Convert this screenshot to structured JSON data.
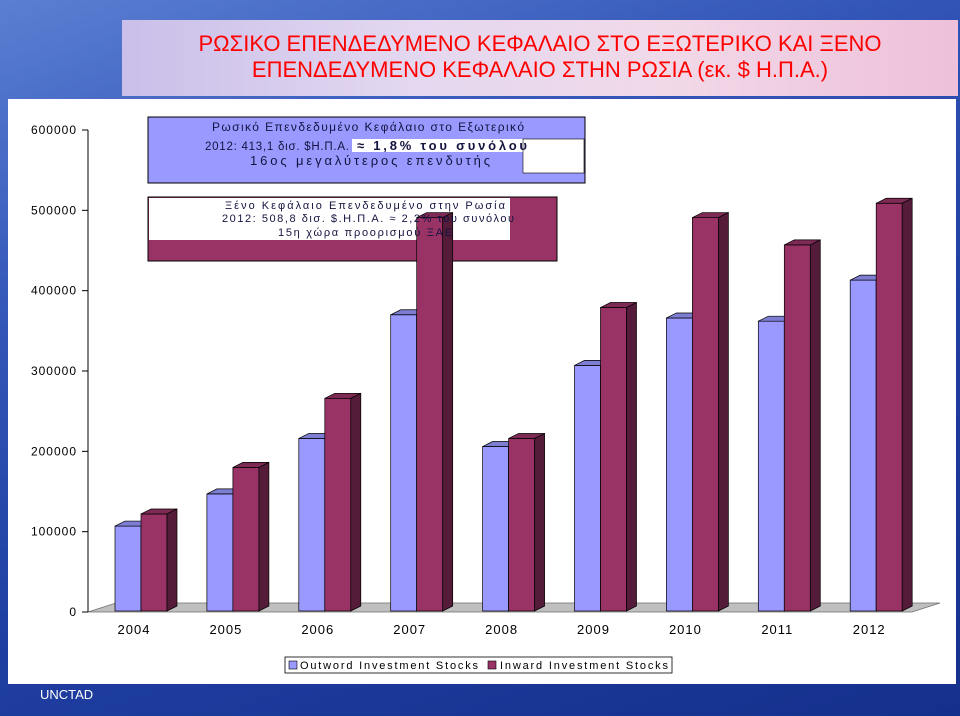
{
  "slide": {
    "title_lines": [
      "ΡΩΣΙΚΟ ΕΠΕΝΔΕΔΥΜΕΝΟ ΚΕΦΑΛΑΙΟ ΣΤΟ ΕΞΩΤΕΡΙΚΟ ΚΑΙ ΞΕΝΟ",
      "ΕΠΕΝΔΕΔΥΜΕΝΟ ΚΕΦΑΛΑΙΟ ΣΤΗΝ ΡΩΣΙΑ (εκ. $ Η.Π.Α.)"
    ],
    "footer": "UNCTAD",
    "colors": {
      "title_text": "#ff0000",
      "panel": "#ffffff"
    }
  },
  "annotations": {
    "outward": {
      "line1": "Ρωσικό Επενδεδυμένο Κεφάλαιο στο Εξωτερικό",
      "line2_value": "2012: 413,1 δισ. $Η.Π.Α.",
      "line2_share": "≈ 1,8% του συνόλου",
      "line3": "16ος μεγαλύτερος επενδυτής",
      "fill": "#9999ff"
    },
    "inward": {
      "line1": "Ξένο Κεφάλαιο Επενδεδυμένο στην Ρωσία",
      "line2": "2012: 508,8 δισ. $.Η.Π.Α. ≈ 2,2% του συνόλου",
      "line3": "15η χώρα προορισμού ΞΑΕ",
      "fill": "#993366"
    }
  },
  "chart_data": {
    "type": "bar",
    "three_d": true,
    "categories": [
      "2004",
      "2005",
      "2006",
      "2007",
      "2008",
      "2009",
      "2010",
      "2011",
      "2012"
    ],
    "series": [
      {
        "name": "Outword Investment Stocks",
        "color": "#9999ff",
        "values": [
          107000,
          147000,
          216000,
          370000,
          206000,
          307000,
          366000,
          362000,
          413100
        ]
      },
      {
        "name": "Inward Investment Stocks",
        "color": "#993366",
        "values": [
          122000,
          180000,
          266000,
          491000,
          216000,
          379000,
          491000,
          457000,
          508800
        ]
      }
    ],
    "ylim": [
      0,
      600000
    ],
    "y_ticks": [
      0,
      100000,
      200000,
      300000,
      400000,
      500000,
      600000
    ],
    "grid": false,
    "legend": "bottom"
  }
}
